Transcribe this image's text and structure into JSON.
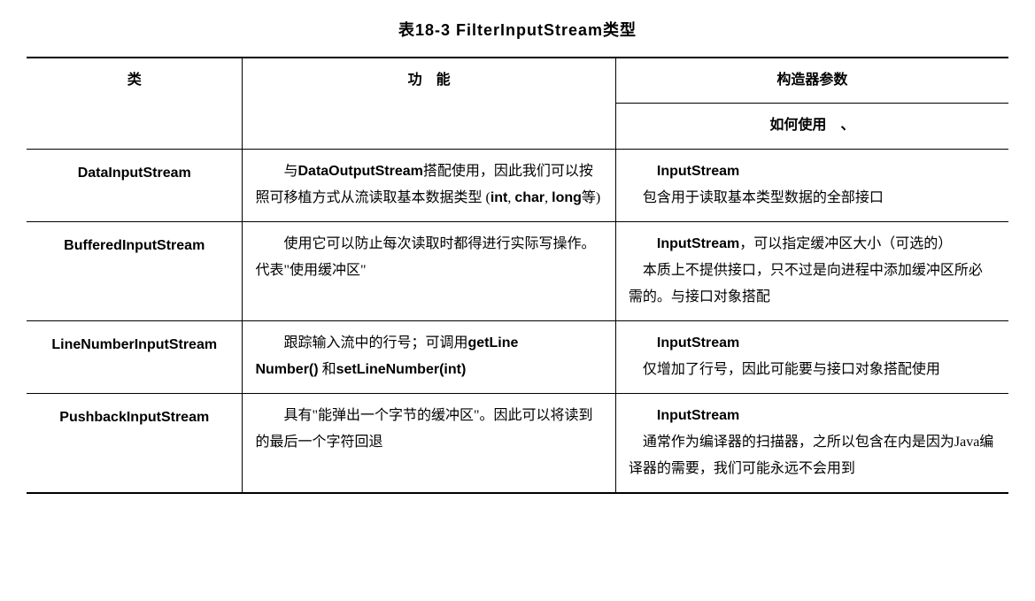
{
  "title": "表18-3  FilterInputStream类型",
  "headers": {
    "class": "类",
    "function": "功　能",
    "constructor": "构造器参数",
    "usage": "如何使用　、"
  },
  "rows": [
    {
      "class": "DataInputStream",
      "function_html": "与<span class='bold-inline'>DataOutputStream</span>搭配使用，因此我们可以按照可移植方式从流读取基本数据类型 (<span class='bold-inline'>int</span>, <span class='bold-inline'>char</span>, <span class='bold-inline'>long</span>等)",
      "usage_html": "<span class='usage-first'>InputStream</span><br>　包含用于读取基本类型数据的全部接口"
    },
    {
      "class": "BufferedInputStream",
      "function_html": "使用它可以防止每次读取时都得进行实际写操作。代表\"使用缓冲区\"",
      "usage_html": "<span class='usage-first'>InputStream</span>，可以指定缓冲区大小（可选的）<br>　本质上不提供接口，只不过是向进程中添加缓冲区所必需的。与接口对象搭配"
    },
    {
      "class": "LineNumberInputStream",
      "function_html": "跟踪输入流中的行号；可调用<span class='bold-inline'>getLine<br>Number()</span> 和<span class='bold-inline'>setLineNumber(int)</span>",
      "usage_html": "<span class='usage-first'>InputStream</span><br>　仅增加了行号，因此可能要与接口对象搭配使用"
    },
    {
      "class": "PushbackInputStream",
      "function_html": "具有\"能弹出一个字节的缓冲区\"。因此可以将读到的最后一个字符回退",
      "usage_html": "<span class='usage-first'>InputStream</span><br>　通常作为编译器的扫描器，之所以包含在内是因为Java编译器的需要，我们可能永远不会用到"
    }
  ]
}
